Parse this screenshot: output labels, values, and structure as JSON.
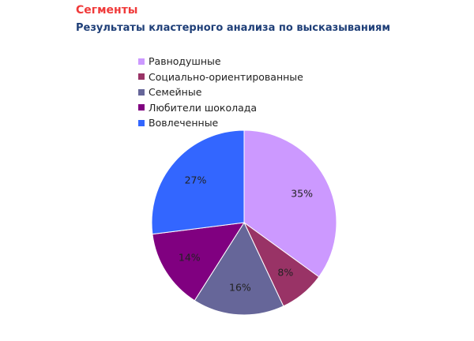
{
  "chart_data": {
    "type": "pie",
    "title": "Сегменты",
    "subtitle": "Результаты кластерного анализа по высказываниям",
    "legend_position": "top",
    "slices": [
      {
        "name": "Равнодушные",
        "value": 35,
        "label": "35%",
        "color": "#cc99ff"
      },
      {
        "name": "Социально-ориентированные",
        "value": 8,
        "label": "8%",
        "color": "#993366"
      },
      {
        "name": "Семейные",
        "value": 16,
        "label": "16%",
        "color": "#666699"
      },
      {
        "name": "Любители шоколада",
        "value": 14,
        "label": "14%",
        "color": "#800080"
      },
      {
        "name": "Вовлеченные",
        "value": 27,
        "label": "27%",
        "color": "#3366ff"
      }
    ]
  }
}
